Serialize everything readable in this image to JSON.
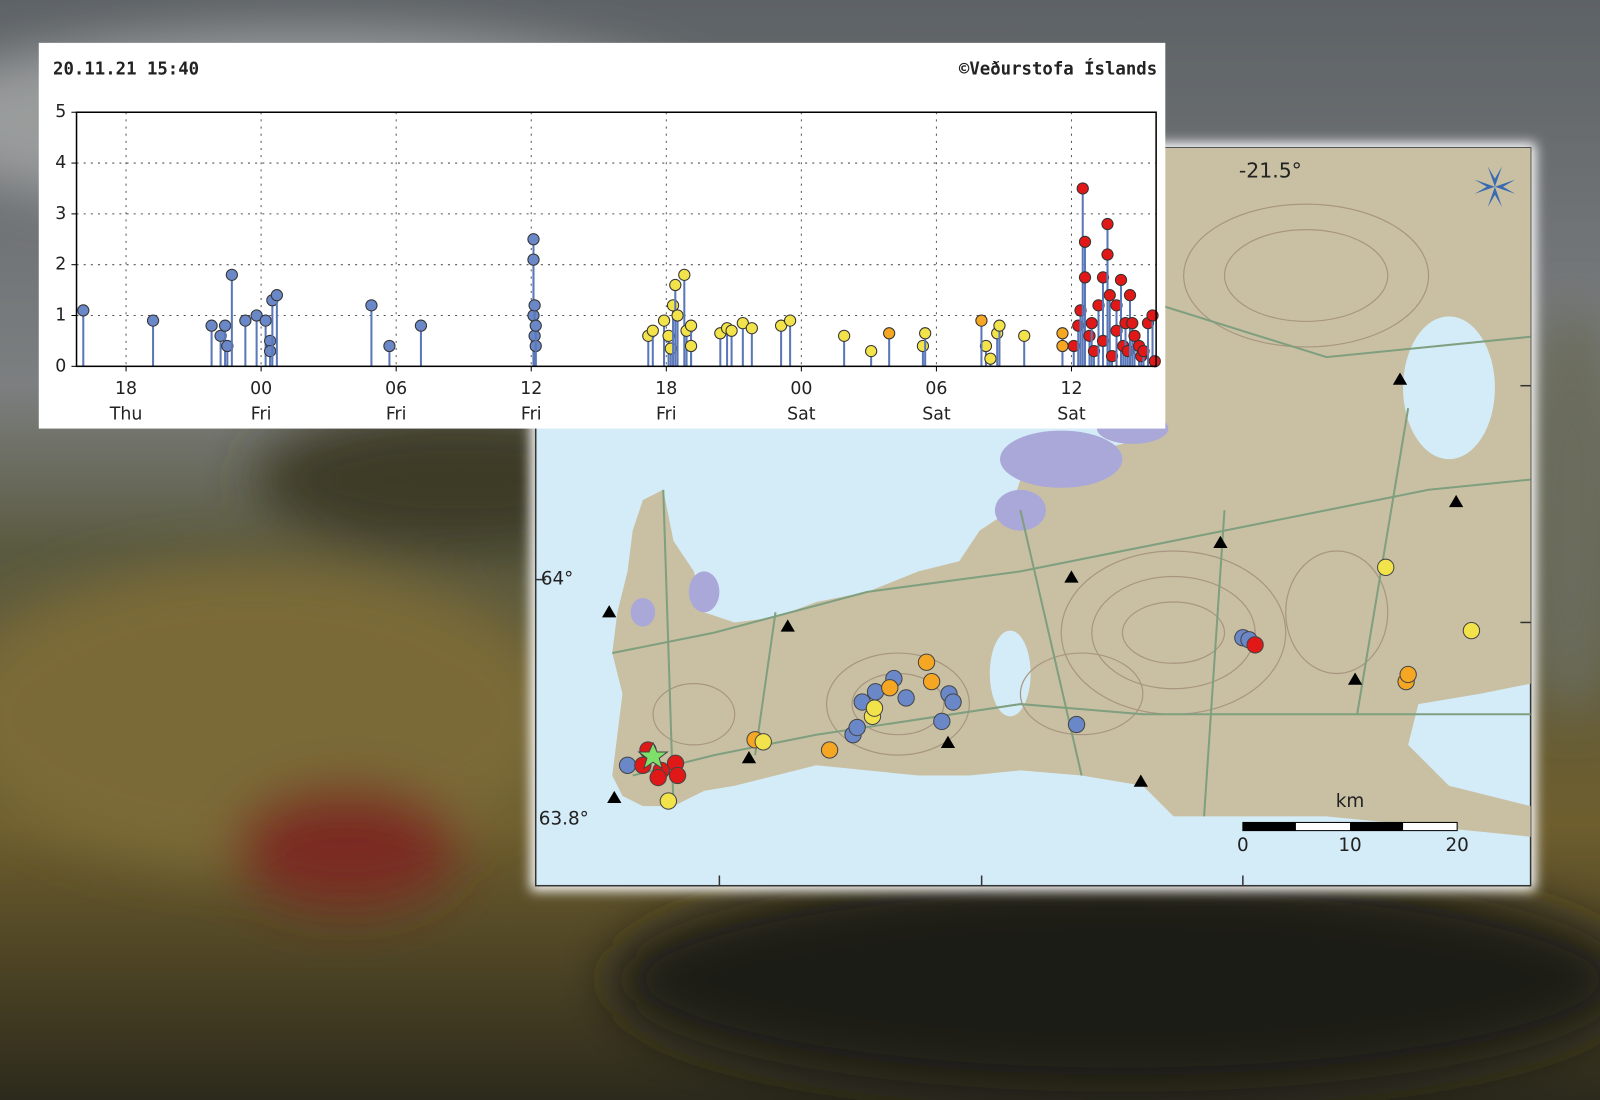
{
  "chart_data": {
    "type": "stem",
    "title": "20.11.21 15:40",
    "credit": "©Veðurstofa Íslands",
    "xlim": [
      15.8,
      63.76
    ],
    "xticks": [
      {
        "value": 18,
        "label": "18 Thu"
      },
      {
        "value": 24,
        "label": "00 Fri"
      },
      {
        "value": 30,
        "label": "06 Fri"
      },
      {
        "value": 36,
        "label": "12 Fri"
      },
      {
        "value": 42,
        "label": "18 Fri"
      },
      {
        "value": 48,
        "label": "00 Sat"
      },
      {
        "value": 54,
        "label": "06 Sat"
      },
      {
        "value": 60,
        "label": "12 Sat"
      }
    ],
    "ylim": [
      0,
      5
    ],
    "yticks": [
      0,
      1,
      2,
      3,
      4,
      5
    ],
    "grid": true,
    "stem_color": "#5a78b8",
    "series": [
      {
        "color": "#6a87c8",
        "x": [
          16.1,
          19.2,
          21.8,
          22.2,
          22.4,
          22.5,
          22.7,
          23.3,
          23.8,
          24.2,
          24.4,
          24.4,
          24.5,
          24.7,
          28.9,
          29.7,
          31.1,
          36.1,
          36.1,
          36.1,
          36.15,
          36.15,
          36.2,
          36.2
        ],
        "values": [
          1.1,
          0.9,
          0.8,
          0.6,
          0.8,
          0.4,
          1.8,
          0.9,
          1.0,
          0.9,
          0.5,
          0.3,
          1.3,
          1.4,
          1.2,
          0.4,
          0.8,
          2.5,
          2.1,
          1.0,
          1.2,
          0.6,
          0.4,
          0.8
        ]
      },
      {
        "color": "#f3e34a",
        "x": [
          41.2,
          41.4,
          41.9,
          42.1,
          42.2,
          42.3,
          42.4,
          42.5,
          42.8,
          42.9,
          43.1,
          43.1,
          44.4,
          44.7,
          44.9,
          45.4,
          45.8,
          47.1,
          47.5,
          49.9,
          51.1,
          53.4,
          53.5,
          56.2,
          56.4,
          56.7,
          56.8,
          57.9
        ],
        "values": [
          0.6,
          0.7,
          0.9,
          0.6,
          0.35,
          1.2,
          1.6,
          1.0,
          1.8,
          0.7,
          0.8,
          0.4,
          0.65,
          0.75,
          0.7,
          0.85,
          0.75,
          0.8,
          0.9,
          0.6,
          0.3,
          0.4,
          0.65,
          0.4,
          0.15,
          0.65,
          0.8,
          0.6
        ]
      },
      {
        "color": "#f5a623",
        "x": [
          51.9,
          56.0,
          59.6,
          59.6
        ],
        "values": [
          0.65,
          0.9,
          0.65,
          0.4
        ]
      },
      {
        "color": "#e01818",
        "x": [
          60.1,
          60.3,
          60.4,
          60.5,
          60.6,
          60.6,
          60.8,
          60.9,
          61.0,
          61.2,
          61.4,
          61.4,
          61.6,
          61.6,
          61.7,
          61.8,
          62.0,
          62.0,
          62.2,
          62.3,
          62.4,
          62.5,
          62.6,
          62.7,
          62.8,
          63.0,
          63.1,
          63.2,
          63.4,
          63.6,
          63.7
        ],
        "values": [
          0.4,
          0.8,
          1.1,
          3.5,
          2.45,
          1.75,
          0.6,
          0.85,
          0.3,
          1.2,
          1.75,
          0.5,
          2.8,
          2.2,
          1.4,
          0.2,
          1.2,
          0.7,
          1.7,
          0.4,
          0.85,
          0.3,
          1.4,
          0.85,
          0.6,
          0.4,
          0.2,
          0.3,
          0.85,
          1.0,
          0.1
        ]
      }
    ]
  },
  "map": {
    "lon_label": "-21.5°",
    "lat_labels": [
      "64°",
      "63.8°"
    ],
    "scale_unit": "km",
    "scale_labels": [
      "0",
      "10",
      "20"
    ]
  }
}
